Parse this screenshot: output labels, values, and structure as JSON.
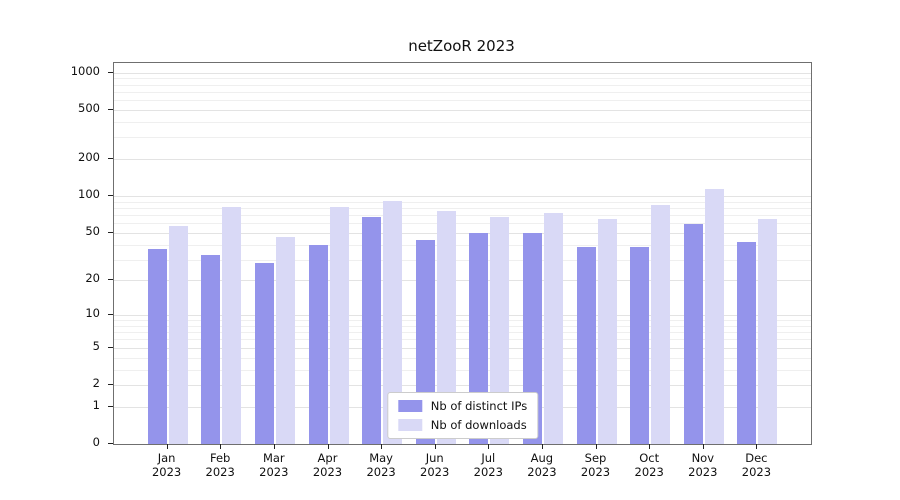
{
  "chart_data": {
    "type": "bar",
    "title": "netZooR 2023",
    "categories": [
      "Jan",
      "Feb",
      "Mar",
      "Apr",
      "May",
      "Jun",
      "Jul",
      "Aug",
      "Sep",
      "Oct",
      "Nov",
      "Dec"
    ],
    "year": "2023",
    "series": [
      {
        "name": "Nb of distinct IPs",
        "color": "#9494eb",
        "values": [
          37,
          33,
          28,
          40,
          68,
          44,
          50,
          50,
          38,
          38,
          59,
          42
        ]
      },
      {
        "name": "Nb of downloads",
        "color": "#d9d9f6",
        "values": [
          57,
          82,
          46,
          81,
          92,
          76,
          67,
          73,
          65,
          84,
          114,
          65
        ]
      }
    ],
    "yticks": [
      0,
      1,
      2,
      5,
      10,
      20,
      50,
      100,
      200,
      500,
      1000
    ],
    "gridlines": [
      1,
      2,
      3,
      4,
      5,
      6,
      7,
      8,
      9,
      10,
      20,
      30,
      40,
      50,
      60,
      70,
      80,
      90,
      100,
      200,
      300,
      400,
      500,
      600,
      700,
      800,
      900,
      1000
    ],
    "scale": "log1p",
    "ymax": 1200,
    "xlabel": "",
    "ylabel": "",
    "grid": true,
    "legend_position": "bottom-center"
  }
}
